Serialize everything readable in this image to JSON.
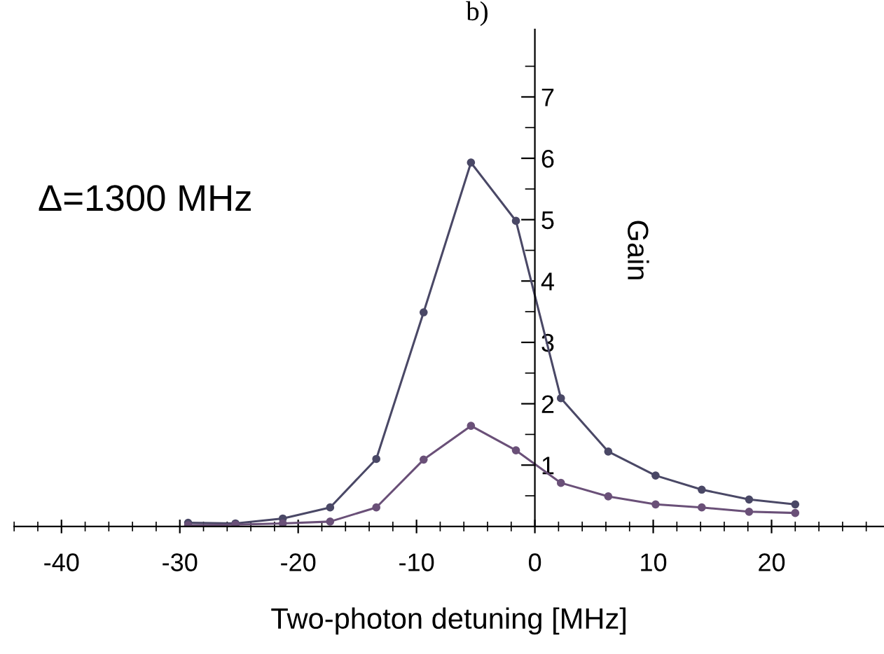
{
  "chart_data": {
    "type": "line",
    "title": "b)",
    "xlabel": "Two-photon detuning [MHz]",
    "ylabel": "Gain",
    "annotations": [
      "Δ=1300 MHz"
    ],
    "x": [
      -29.3,
      -25.3,
      -21.3,
      -17.3,
      -13.4,
      -9.4,
      -5.4,
      -1.6,
      2.2,
      6.2,
      10.2,
      14.1,
      18.1,
      22.0
    ],
    "series": [
      {
        "color": "#4a4866",
        "values": [
          0.06,
          0.05,
          0.13,
          0.31,
          1.1,
          3.49,
          5.93,
          4.98,
          2.09,
          1.22,
          0.83,
          0.6,
          0.44,
          0.36
        ]
      },
      {
        "color": "#6a5078",
        "values": [
          0.02,
          0.03,
          0.05,
          0.08,
          0.31,
          1.09,
          1.64,
          1.24,
          0.71,
          0.49,
          0.36,
          0.31,
          0.24,
          0.22
        ]
      }
    ],
    "xlim": [
      -44,
      29.5
    ],
    "ylim": [
      0,
      8.1
    ],
    "xticks": [
      -40,
      -30,
      -20,
      -10,
      0,
      10,
      20
    ],
    "yticks": [
      1,
      2,
      3,
      4,
      5,
      6,
      7
    ],
    "grid": false,
    "legend": false,
    "marker": "circle",
    "line_style": "solid"
  }
}
